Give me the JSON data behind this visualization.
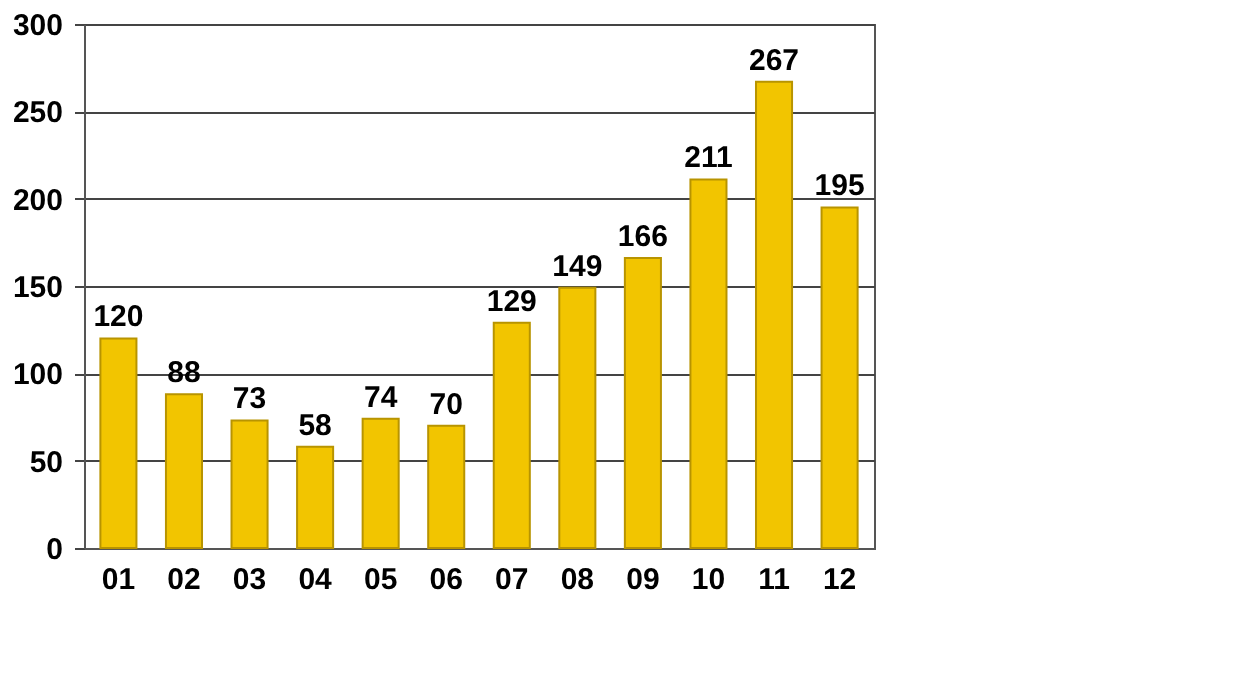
{
  "chart_data": {
    "type": "bar",
    "categories": [
      "01",
      "02",
      "03",
      "04",
      "05",
      "06",
      "07",
      "08",
      "09",
      "10",
      "11",
      "12"
    ],
    "values": [
      120,
      88,
      73,
      58,
      74,
      70,
      129,
      149,
      166,
      211,
      267,
      195
    ],
    "color": "#f2c500",
    "ylim": [
      0,
      300
    ],
    "yticks": [
      0,
      50,
      100,
      150,
      200,
      250,
      300
    ],
    "grid": "y",
    "data_labels": true
  }
}
